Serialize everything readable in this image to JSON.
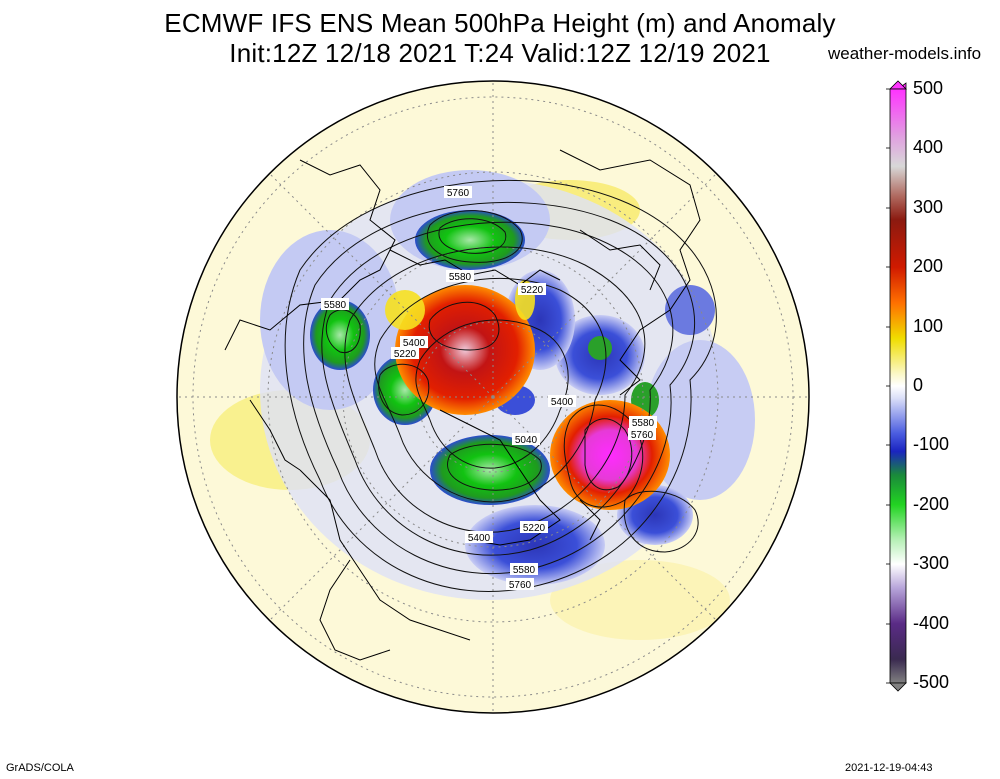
{
  "title": {
    "line1": "ECMWF IFS ENS Mean 500hPa Height (m) and Anomaly",
    "line2": "Init:12Z 12/18 2021  T:24 Valid:12Z 12/19 2021"
  },
  "brand": "weather-models.info",
  "footer": {
    "left": "GrADS/COLA",
    "right": "2021-12-19-04:43"
  },
  "colorbar": {
    "labels": [
      "500",
      "400",
      "300",
      "200",
      "100",
      "0",
      "-100",
      "-200",
      "-300",
      "-400",
      "-500"
    ],
    "colors": [
      "#808080",
      "#5a2b86",
      "#7d55b0",
      "#ece8f4",
      "#2ca02c",
      "#22d422",
      "#1c2fc8",
      "#b3b9ef",
      "#ffffff",
      "#fbf7c6",
      "#f5e000",
      "#ff8c00",
      "#e21f00",
      "#8b1a10",
      "#c9a49d",
      "#ffffff",
      "#ff52ff"
    ]
  },
  "contour_labels": [
    "5760",
    "5580",
    "5220",
    "5580",
    "5400",
    "5220",
    "5400",
    "5580",
    "5760",
    "5040",
    "5400",
    "5220",
    "5580",
    "5760"
  ]
}
